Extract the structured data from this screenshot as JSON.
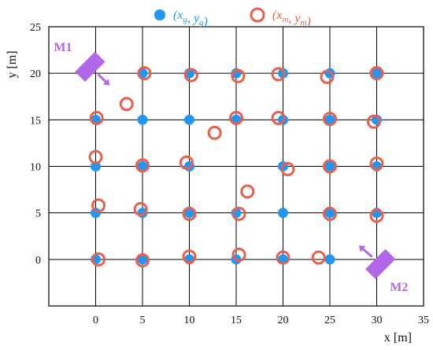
{
  "colors": {
    "ground_truth": "#2196F3",
    "measured": "#E8604C",
    "microphone": "#B266E8",
    "grid": "#000000"
  },
  "legend": {
    "ground_truth_label": "(x_g, y_g)",
    "measured_label": "(x_m, y_m)"
  },
  "chart_data": {
    "type": "scatter",
    "xlabel": "x [m]",
    "ylabel": "y [m]",
    "xlim": [
      -5,
      35
    ],
    "ylim": [
      -5,
      25
    ],
    "xticks": [
      0,
      5,
      10,
      15,
      20,
      25,
      30,
      35
    ],
    "yticks": [
      0,
      5,
      10,
      15,
      20,
      25
    ],
    "grid": true,
    "legend_position": "top-center",
    "series": [
      {
        "name": "(x_g, y_g)",
        "marker": "filled-circle",
        "points": [
          [
            0,
            0
          ],
          [
            5,
            0
          ],
          [
            10,
            0
          ],
          [
            15,
            0
          ],
          [
            20,
            0
          ],
          [
            25,
            0
          ],
          [
            0,
            5
          ],
          [
            5,
            5
          ],
          [
            10,
            5
          ],
          [
            15,
            5
          ],
          [
            20,
            5
          ],
          [
            25,
            5
          ],
          [
            30,
            5
          ],
          [
            0,
            10
          ],
          [
            5,
            10
          ],
          [
            10,
            10
          ],
          [
            20,
            10
          ],
          [
            25,
            10
          ],
          [
            30,
            10
          ],
          [
            0,
            15
          ],
          [
            5,
            15
          ],
          [
            10,
            15
          ],
          [
            15,
            15
          ],
          [
            20,
            15
          ],
          [
            25,
            15
          ],
          [
            30,
            15
          ],
          [
            5,
            20
          ],
          [
            10,
            20
          ],
          [
            15,
            20
          ],
          [
            20,
            20
          ],
          [
            25,
            20
          ],
          [
            30,
            20
          ]
        ]
      },
      {
        "name": "(x_m, y_m)",
        "marker": "open-circle",
        "points": [
          [
            0.3,
            0
          ],
          [
            5,
            -0.1
          ],
          [
            10,
            0.3
          ],
          [
            15.3,
            0.5
          ],
          [
            20,
            0.2
          ],
          [
            23.8,
            0.2
          ],
          [
            0.3,
            5.8
          ],
          [
            4.8,
            5.4
          ],
          [
            10,
            4.9
          ],
          [
            15.3,
            4.9
          ],
          [
            25,
            4.9
          ],
          [
            30,
            4.7
          ],
          [
            16.2,
            7.3
          ],
          [
            0,
            11
          ],
          [
            5,
            10.1
          ],
          [
            9.7,
            10.4
          ],
          [
            20.5,
            9.7
          ],
          [
            25,
            10
          ],
          [
            30,
            10.3
          ],
          [
            0.1,
            15.2
          ],
          [
            15,
            15.2
          ],
          [
            19.5,
            15.2
          ],
          [
            25,
            15.1
          ],
          [
            29.7,
            14.8
          ],
          [
            12.7,
            13.6
          ],
          [
            3.3,
            16.7
          ],
          [
            5.2,
            20
          ],
          [
            10.2,
            19.8
          ],
          [
            15.2,
            19.7
          ],
          [
            19.5,
            19.9
          ],
          [
            24.7,
            19.6
          ],
          [
            30,
            20
          ]
        ]
      }
    ],
    "annotations": [
      {
        "label": "M1",
        "position": [
          -0.6,
          20.7
        ],
        "arrow_to": [
          1.5,
          18.7
        ]
      },
      {
        "label": "M2",
        "position": [
          30.4,
          -0.5
        ],
        "arrow_to": [
          28.1,
          1.5
        ]
      }
    ]
  }
}
